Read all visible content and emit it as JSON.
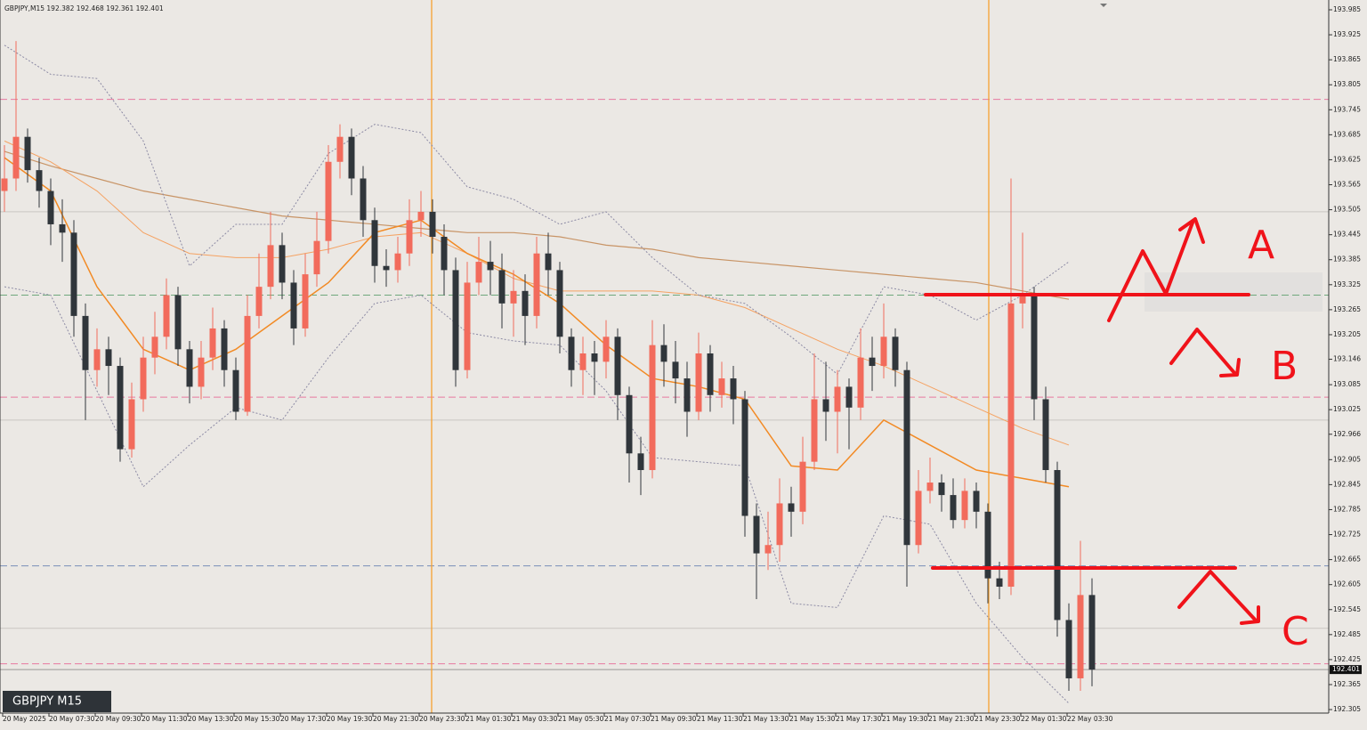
{
  "chart_data": {
    "type": "candlestick",
    "header": "GBPJPY,M15  192.382 192.468 192.361 192.401",
    "symbol_label": "GBPJPY M15",
    "up_color": "#f26b5c",
    "down_color": "#30363b",
    "ylim": [
      192.288,
      194.0085
    ],
    "yticks": [
      193.985,
      193.925,
      193.865,
      193.805,
      193.745,
      193.685,
      193.625,
      193.565,
      193.505,
      193.445,
      193.385,
      193.325,
      193.265,
      193.205,
      193.146,
      193.085,
      193.025,
      192.966,
      192.905,
      192.845,
      192.785,
      192.725,
      192.665,
      192.605,
      192.545,
      192.485,
      192.425,
      192.365,
      192.305
    ],
    "categories": [
      "20 May 2025",
      "20 May 07:30",
      "20 May 09:30",
      "20 May 11:30",
      "20 May 13:30",
      "20 May 15:30",
      "20 May 17:30",
      "20 May 19:30",
      "20 May 21:30",
      "20 May 23:30",
      "21 May 01:30",
      "21 May 03:30",
      "21 May 05:30",
      "21 May 07:30",
      "21 May 09:30",
      "21 May 11:30",
      "21 May 13:30",
      "21 May 15:30",
      "21 May 17:30",
      "21 May 19:30",
      "21 May 21:30",
      "21 May 23:30",
      "22 May 01:30",
      "22 May 03:30"
    ],
    "current_price": {
      "value": 192.401,
      "label": "192.401"
    },
    "levels": [
      {
        "value": 193.77,
        "color": "#e8799f",
        "dash": true
      },
      {
        "value": 193.5,
        "color": "#c9c6c2",
        "dash": false
      },
      {
        "value": 193.3,
        "color": "#6fa77c",
        "dash": true
      },
      {
        "value": 193.055,
        "color": "#e8799f",
        "dash": true
      },
      {
        "value": 193.0,
        "color": "#c9c6c2",
        "dash": false
      },
      {
        "value": 192.65,
        "color": "#7a8fb8",
        "dash": true
      },
      {
        "value": 192.5,
        "color": "#c9c6c2",
        "dash": false
      },
      {
        "value": 192.415,
        "color": "#e8799f",
        "dash": true
      }
    ],
    "annotations": [
      "A",
      "B",
      "C"
    ],
    "candles": [
      [
        193.55,
        193.66,
        193.5,
        193.58
      ],
      [
        193.58,
        193.91,
        193.55,
        193.68
      ],
      [
        193.68,
        193.7,
        193.57,
        193.6
      ],
      [
        193.6,
        193.63,
        193.51,
        193.55
      ],
      [
        193.55,
        193.58,
        193.42,
        193.47
      ],
      [
        193.47,
        193.53,
        193.38,
        193.45
      ],
      [
        193.45,
        193.48,
        193.2,
        193.25
      ],
      [
        193.25,
        193.28,
        193.0,
        193.12
      ],
      [
        193.12,
        193.22,
        193.08,
        193.17
      ],
      [
        193.17,
        193.2,
        193.06,
        193.13
      ],
      [
        193.13,
        193.15,
        192.9,
        192.93
      ],
      [
        192.93,
        193.09,
        192.91,
        193.05
      ],
      [
        193.05,
        193.2,
        193.02,
        193.15
      ],
      [
        193.15,
        193.26,
        193.11,
        193.2
      ],
      [
        193.2,
        193.34,
        193.17,
        193.3
      ],
      [
        193.3,
        193.32,
        193.13,
        193.17
      ],
      [
        193.17,
        193.19,
        193.04,
        193.08
      ],
      [
        193.08,
        193.19,
        193.05,
        193.15
      ],
      [
        193.15,
        193.27,
        193.12,
        193.22
      ],
      [
        193.22,
        193.24,
        193.08,
        193.12
      ],
      [
        193.12,
        193.15,
        193.0,
        193.02
      ],
      [
        193.02,
        193.3,
        193.01,
        193.25
      ],
      [
        193.25,
        193.4,
        193.22,
        193.32
      ],
      [
        193.32,
        193.5,
        193.29,
        193.42
      ],
      [
        193.42,
        193.45,
        193.29,
        193.33
      ],
      [
        193.33,
        193.36,
        193.18,
        193.22
      ],
      [
        193.22,
        193.4,
        193.2,
        193.35
      ],
      [
        193.35,
        193.5,
        193.32,
        193.43
      ],
      [
        193.43,
        193.66,
        193.4,
        193.62
      ],
      [
        193.62,
        193.71,
        193.58,
        193.68
      ],
      [
        193.68,
        193.7,
        193.54,
        193.58
      ],
      [
        193.58,
        193.61,
        193.44,
        193.48
      ],
      [
        193.48,
        193.51,
        193.33,
        193.37
      ],
      [
        193.37,
        193.41,
        193.32,
        193.36
      ],
      [
        193.36,
        193.44,
        193.33,
        193.4
      ],
      [
        193.4,
        193.53,
        193.37,
        193.48
      ],
      [
        193.48,
        193.55,
        193.44,
        193.5
      ],
      [
        193.5,
        193.53,
        193.4,
        193.44
      ],
      [
        193.44,
        193.47,
        193.3,
        193.36
      ],
      [
        193.36,
        193.39,
        193.08,
        193.12
      ],
      [
        193.12,
        193.38,
        193.1,
        193.33
      ],
      [
        193.33,
        193.44,
        193.3,
        193.38
      ],
      [
        193.38,
        193.43,
        193.3,
        193.36
      ],
      [
        193.36,
        193.4,
        193.22,
        193.28
      ],
      [
        193.28,
        193.36,
        193.2,
        193.31
      ],
      [
        193.31,
        193.35,
        193.18,
        193.25
      ],
      [
        193.25,
        193.44,
        193.22,
        193.4
      ],
      [
        193.4,
        193.45,
        193.3,
        193.36
      ],
      [
        193.36,
        193.38,
        193.16,
        193.2
      ],
      [
        193.2,
        193.22,
        193.08,
        193.12
      ],
      [
        193.12,
        193.2,
        193.06,
        193.16
      ],
      [
        193.16,
        193.19,
        193.06,
        193.14
      ],
      [
        193.14,
        193.24,
        193.1,
        193.2
      ],
      [
        193.2,
        193.22,
        193.0,
        193.06
      ],
      [
        193.06,
        193.08,
        192.85,
        192.92
      ],
      [
        192.92,
        192.96,
        192.82,
        192.88
      ],
      [
        192.88,
        193.24,
        192.86,
        193.18
      ],
      [
        193.18,
        193.23,
        193.08,
        193.14
      ],
      [
        193.14,
        193.19,
        193.04,
        193.1
      ],
      [
        193.1,
        193.14,
        192.96,
        193.02
      ],
      [
        193.02,
        193.21,
        193.0,
        193.16
      ],
      [
        193.16,
        193.18,
        193.02,
        193.06
      ],
      [
        193.06,
        193.14,
        193.03,
        193.1
      ],
      [
        193.1,
        193.13,
        192.99,
        193.05
      ],
      [
        193.05,
        193.07,
        192.72,
        192.77
      ],
      [
        192.77,
        192.8,
        192.57,
        192.68
      ],
      [
        192.68,
        192.78,
        192.64,
        192.7
      ],
      [
        192.7,
        192.86,
        192.66,
        192.8
      ],
      [
        192.8,
        192.84,
        192.72,
        192.78
      ],
      [
        192.78,
        192.96,
        192.75,
        192.9
      ],
      [
        192.9,
        193.16,
        192.88,
        193.05
      ],
      [
        193.05,
        193.14,
        192.95,
        193.02
      ],
      [
        193.02,
        193.12,
        192.92,
        193.08
      ],
      [
        193.08,
        193.1,
        192.93,
        193.03
      ],
      [
        193.03,
        193.22,
        193.0,
        193.15
      ],
      [
        193.15,
        193.2,
        193.07,
        193.13
      ],
      [
        193.13,
        193.28,
        193.1,
        193.2
      ],
      [
        193.2,
        193.22,
        193.08,
        193.12
      ],
      [
        193.12,
        193.14,
        192.6,
        192.7
      ],
      [
        192.7,
        192.88,
        192.68,
        192.83
      ],
      [
        192.83,
        192.91,
        192.8,
        192.85
      ],
      [
        192.85,
        192.87,
        192.78,
        192.82
      ],
      [
        192.82,
        192.86,
        192.74,
        192.76
      ],
      [
        192.76,
        192.86,
        192.74,
        192.83
      ],
      [
        192.83,
        192.85,
        192.74,
        192.78
      ],
      [
        192.78,
        192.8,
        192.56,
        192.62
      ],
      [
        192.62,
        192.66,
        192.57,
        192.6
      ],
      [
        192.6,
        193.58,
        192.58,
        193.28
      ],
      [
        193.28,
        193.45,
        193.22,
        193.3
      ],
      [
        193.3,
        193.32,
        193.0,
        193.05
      ],
      [
        193.05,
        193.08,
        192.85,
        192.88
      ],
      [
        192.88,
        192.9,
        192.48,
        192.52
      ],
      [
        192.52,
        192.56,
        192.35,
        192.38
      ],
      [
        192.38,
        192.71,
        192.35,
        192.58
      ],
      [
        192.58,
        192.62,
        192.361,
        192.401
      ]
    ],
    "indicators": {
      "x": [
        0,
        4,
        8,
        12,
        16,
        20,
        24,
        28,
        32,
        36,
        40,
        44,
        48,
        52,
        56,
        60,
        64,
        68,
        72,
        76,
        80,
        84,
        88,
        92
      ],
      "series": [
        {
          "color": "#c89466",
          "width": 1.2,
          "dotted": false,
          "values": [
            193.645,
            193.61,
            193.58,
            193.55,
            193.53,
            193.51,
            193.49,
            193.48,
            193.47,
            193.46,
            193.45,
            193.45,
            193.44,
            193.42,
            193.41,
            193.39,
            193.38,
            193.37,
            193.36,
            193.35,
            193.34,
            193.33,
            193.31,
            193.29
          ]
        },
        {
          "color": "#f5a262",
          "width": 1,
          "dotted": false,
          "values": [
            193.67,
            193.62,
            193.55,
            193.45,
            193.4,
            193.39,
            193.39,
            193.41,
            193.44,
            193.45,
            193.4,
            193.34,
            193.31,
            193.31,
            193.31,
            193.3,
            193.27,
            193.22,
            193.17,
            193.13,
            193.08,
            193.03,
            192.98,
            192.94
          ]
        },
        {
          "color": "#f28a24",
          "width": 1.5,
          "dotted": false,
          "values": [
            193.63,
            193.55,
            193.32,
            193.17,
            193.12,
            193.17,
            193.25,
            193.33,
            193.45,
            193.48,
            193.4,
            193.35,
            193.28,
            193.18,
            193.1,
            193.08,
            193.05,
            192.89,
            192.88,
            193.0,
            192.94,
            192.88,
            192.86,
            192.84
          ]
        },
        {
          "color": "#8c8aa4",
          "width": 1,
          "dotted": true,
          "values": [
            193.9,
            193.83,
            193.82,
            193.67,
            193.37,
            193.47,
            193.47,
            193.64,
            193.71,
            193.69,
            193.56,
            193.53,
            193.47,
            193.5,
            193.39,
            193.3,
            193.28,
            193.2,
            193.11,
            193.32,
            193.3,
            193.24,
            193.3,
            193.38
          ]
        },
        {
          "color": "#8c8aa4",
          "width": 1,
          "dotted": true,
          "values": [
            193.32,
            193.3,
            193.07,
            192.84,
            192.94,
            193.03,
            193.0,
            193.15,
            193.28,
            193.3,
            193.21,
            193.19,
            193.18,
            193.07,
            192.91,
            192.9,
            192.89,
            192.56,
            192.55,
            192.77,
            192.75,
            192.56,
            192.43,
            192.32
          ]
        }
      ]
    }
  }
}
